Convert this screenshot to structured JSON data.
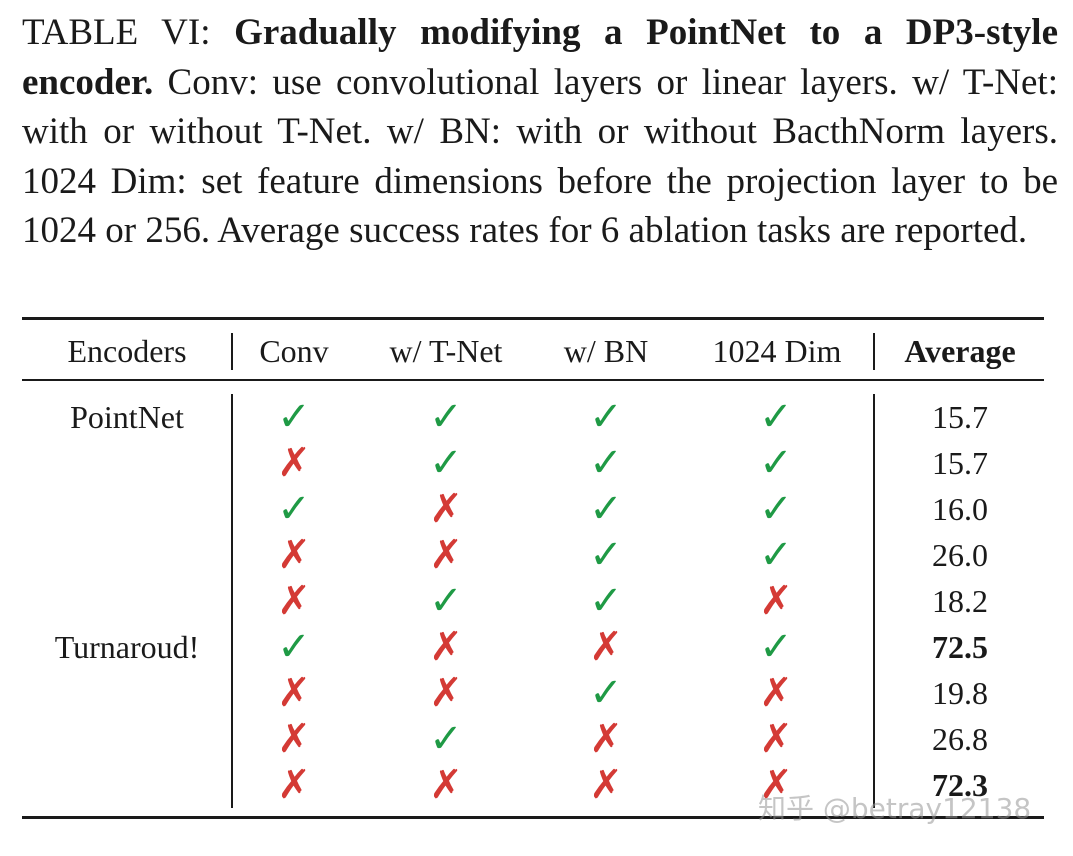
{
  "caption": {
    "label": "TABLE VI: ",
    "title": "Gradually modifying a PointNet to a DP3-style encoder.",
    "body": " Conv: use convolutional layers or linear layers. w/ T-Net: with or without T-Net. w/ BN: with or without BacthNorm layers. 1024 Dim: set feature dimensions before the projection layer to be 1024 or 256. Average success rates for 6 ablation tasks are reported."
  },
  "table": {
    "headers": [
      "Encoders",
      "Conv",
      "w/ T-Net",
      "w/ BN",
      "1024 Dim",
      "Average"
    ],
    "symbols": {
      "check": "✓",
      "cross": "✗"
    },
    "rows": [
      {
        "encoder": "PointNet",
        "conv": "check",
        "tnet": "check",
        "bn": "check",
        "dim": "check",
        "average": "15.7",
        "bold": false
      },
      {
        "encoder": "",
        "conv": "cross",
        "tnet": "check",
        "bn": "check",
        "dim": "check",
        "average": "15.7",
        "bold": false
      },
      {
        "encoder": "",
        "conv": "check",
        "tnet": "cross",
        "bn": "check",
        "dim": "check",
        "average": "16.0",
        "bold": false
      },
      {
        "encoder": "",
        "conv": "cross",
        "tnet": "cross",
        "bn": "check",
        "dim": "check",
        "average": "26.0",
        "bold": false
      },
      {
        "encoder": "",
        "conv": "cross",
        "tnet": "check",
        "bn": "check",
        "dim": "cross",
        "average": "18.2",
        "bold": false
      },
      {
        "encoder": "Turnaroud!",
        "conv": "check",
        "tnet": "cross",
        "bn": "cross",
        "dim": "check",
        "average": "72.5",
        "bold": true
      },
      {
        "encoder": "",
        "conv": "cross",
        "tnet": "cross",
        "bn": "check",
        "dim": "cross",
        "average": "19.8",
        "bold": false
      },
      {
        "encoder": "",
        "conv": "cross",
        "tnet": "check",
        "bn": "cross",
        "dim": "cross",
        "average": "26.8",
        "bold": false
      },
      {
        "encoder": "",
        "conv": "cross",
        "tnet": "cross",
        "bn": "cross",
        "dim": "cross",
        "average": "72.3",
        "bold": true
      }
    ]
  },
  "colors": {
    "check": "#1f9a45",
    "cross": "#d43a35"
  },
  "watermark": "知乎 @betray12138"
}
